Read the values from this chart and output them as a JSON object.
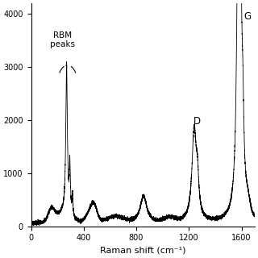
{
  "xlabel": "Raman shift (cm⁻¹)",
  "ylabel": "",
  "xlim": [
    0,
    1700
  ],
  "ylim": [
    0,
    4200
  ],
  "yticks": [
    0,
    1000,
    2000,
    3000,
    4000
  ],
  "xticks": [
    0,
    400,
    800,
    1200,
    1600
  ],
  "background_color": "#ffffff",
  "line_color": "#000000",
  "rbm_label": "RBM\npeaks",
  "d_label": "D",
  "g_label": "G"
}
